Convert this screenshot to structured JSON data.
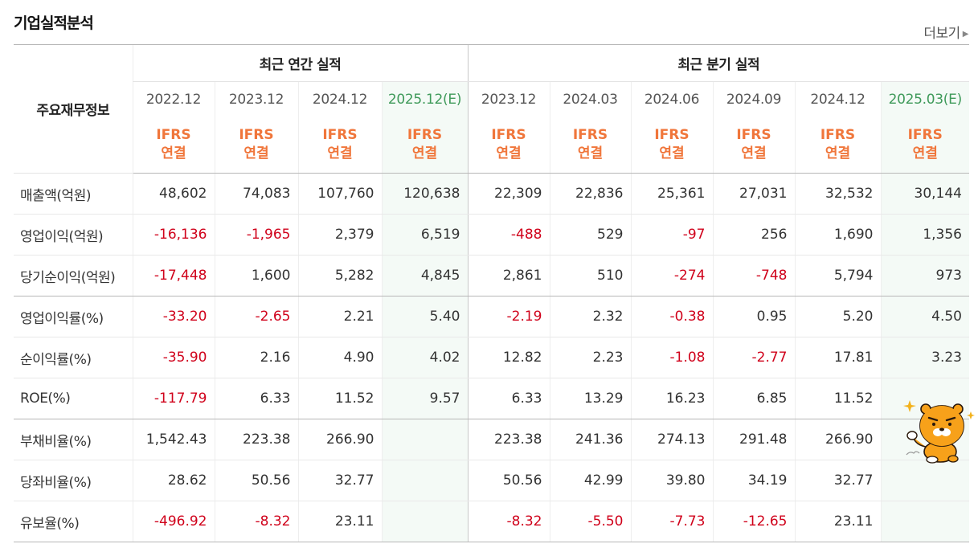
{
  "section_title": "기업실적분석",
  "more_link": "더보기",
  "header": {
    "corner": "주요재무정보",
    "annual_group": "최근 연간 실적",
    "quarter_group": "최근 분기 실적",
    "ifrs_line1": "IFRS",
    "ifrs_line2": "연결",
    "periods": [
      "2022.12",
      "2023.12",
      "2024.12",
      "2025.12(E)",
      "2023.12",
      "2024.03",
      "2024.06",
      "2024.09",
      "2024.12",
      "2025.03(E)"
    ]
  },
  "rows": [
    {
      "label": "매출액(억원)",
      "values": [
        "48,602",
        "74,083",
        "107,760",
        "120,638",
        "22,309",
        "22,836",
        "25,361",
        "27,031",
        "32,532",
        "30,144"
      ]
    },
    {
      "label": "영업이익(억원)",
      "values": [
        "-16,136",
        "-1,965",
        "2,379",
        "6,519",
        "-488",
        "529",
        "-97",
        "256",
        "1,690",
        "1,356"
      ]
    },
    {
      "label": "당기순이익(억원)",
      "values": [
        "-17,448",
        "1,600",
        "5,282",
        "4,845",
        "2,861",
        "510",
        "-274",
        "-748",
        "5,794",
        "973"
      ]
    },
    {
      "label": "영업이익률(%)",
      "values": [
        "-33.20",
        "-2.65",
        "2.21",
        "5.40",
        "-2.19",
        "2.32",
        "-0.38",
        "0.95",
        "5.20",
        "4.50"
      ]
    },
    {
      "label": "순이익률(%)",
      "values": [
        "-35.90",
        "2.16",
        "4.90",
        "4.02",
        "12.82",
        "2.23",
        "-1.08",
        "-2.77",
        "17.81",
        "3.23"
      ]
    },
    {
      "label": "ROE(%)",
      "values": [
        "-117.79",
        "6.33",
        "11.52",
        "9.57",
        "6.33",
        "13.29",
        "16.23",
        "6.85",
        "11.52",
        ""
      ]
    },
    {
      "label": "부채비율(%)",
      "values": [
        "1,542.43",
        "223.38",
        "266.90",
        "",
        "223.38",
        "241.36",
        "274.13",
        "291.48",
        "266.90",
        ""
      ]
    },
    {
      "label": "당좌비율(%)",
      "values": [
        "28.62",
        "50.56",
        "32.77",
        "",
        "50.56",
        "42.99",
        "39.80",
        "34.19",
        "32.77",
        ""
      ]
    },
    {
      "label": "유보율(%)",
      "values": [
        "-496.92",
        "-8.32",
        "23.11",
        "",
        "-8.32",
        "-5.50",
        "-7.73",
        "-12.65",
        "23.11",
        ""
      ]
    }
  ],
  "colors": {
    "negative": "#d0021b",
    "ifrs": "#f0763b",
    "estimate_date": "#3f9a5a",
    "estimate_bg": "#f4faf6"
  },
  "icons": {
    "more_arrow": "right-triangle",
    "sticker": "yellow-lion-character"
  }
}
